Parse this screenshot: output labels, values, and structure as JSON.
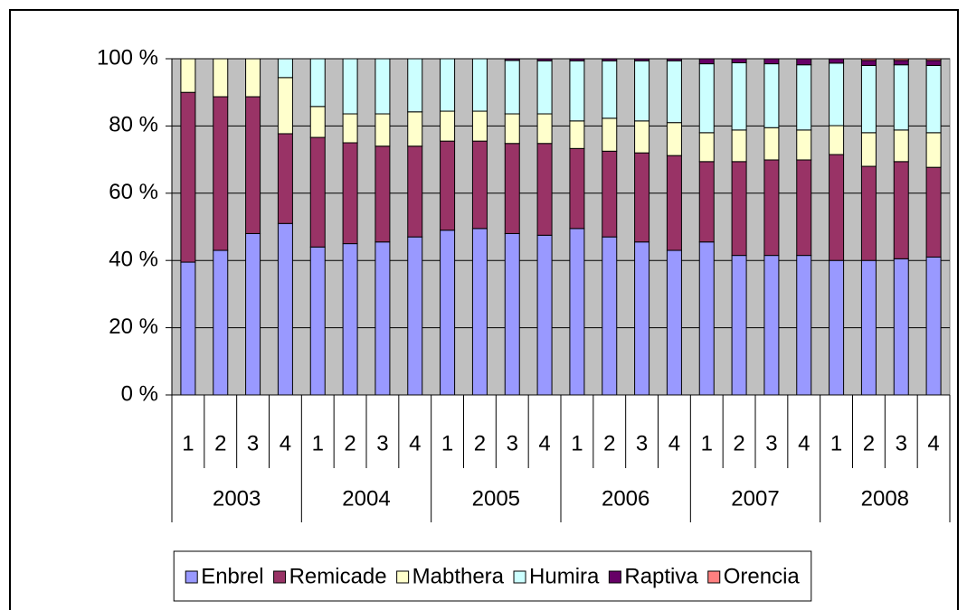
{
  "chart_data": {
    "type": "stacked_bar",
    "categories": [
      "1",
      "2",
      "3",
      "4",
      "1",
      "2",
      "3",
      "4",
      "1",
      "2",
      "3",
      "4",
      "1",
      "2",
      "3",
      "4",
      "1",
      "2",
      "3",
      "4",
      "1",
      "2",
      "3",
      "4"
    ],
    "groups": [
      "2003",
      "2004",
      "2005",
      "2006",
      "2007",
      "2008"
    ],
    "series": [
      {
        "name": "Enbrel",
        "color": "#9999ff",
        "values": [
          39.5,
          43,
          48,
          51,
          44,
          45,
          45.5,
          47,
          49,
          49.5,
          48,
          47.5,
          49.5,
          47,
          45.5,
          43,
          45.5,
          41.5,
          41.5,
          41.5,
          40,
          40,
          40.5,
          41
        ]
      },
      {
        "name": "Remicade",
        "color": "#993366",
        "values": [
          50.5,
          45.7,
          40.7,
          26.7,
          32.6,
          30,
          28.5,
          27,
          26.5,
          26,
          26.8,
          27.3,
          23.8,
          25.5,
          26.5,
          28.2,
          23.9,
          27.9,
          28.4,
          28.4,
          31.5,
          28,
          28.9,
          26.7
        ]
      },
      {
        "name": "Mabthera",
        "color": "#ffffcc",
        "values": [
          10,
          11.3,
          11.3,
          16.7,
          9.2,
          8.6,
          9.6,
          10.2,
          8.9,
          8.9,
          8.8,
          8.8,
          8.2,
          9.8,
          9.5,
          9.8,
          8.6,
          9.4,
          9.6,
          8.9,
          8.6,
          10,
          9.4,
          10.3
        ]
      },
      {
        "name": "Humira",
        "color": "#ccffff",
        "values": [
          0,
          0,
          0,
          5.6,
          14.2,
          16.4,
          16.4,
          15.8,
          15.6,
          15.6,
          15.9,
          15.8,
          17.9,
          17.1,
          17.9,
          18.4,
          20.5,
          20,
          19,
          19.4,
          18.6,
          20,
          19.4,
          20
        ]
      },
      {
        "name": "Raptiva",
        "color": "#660066",
        "values": [
          0,
          0,
          0,
          0,
          0,
          0,
          0,
          0,
          0,
          0,
          0.5,
          0.6,
          0.6,
          0.6,
          0.6,
          0.6,
          1.5,
          1.2,
          1.5,
          1.8,
          1.3,
          1.5,
          1.3,
          1.5
        ]
      },
      {
        "name": "Orencia",
        "color": "#ff8080",
        "values": [
          0,
          0,
          0,
          0,
          0,
          0,
          0,
          0,
          0,
          0,
          0,
          0,
          0,
          0,
          0,
          0,
          0,
          0,
          0,
          0,
          0,
          0.5,
          0.5,
          0.5
        ]
      }
    ],
    "ylim": [
      0,
      100
    ],
    "yticks": [
      {
        "value": 0,
        "label": "0 %"
      },
      {
        "value": 20,
        "label": "20 %"
      },
      {
        "value": 40,
        "label": "40 %"
      },
      {
        "value": 60,
        "label": "60 %"
      },
      {
        "value": 80,
        "label": "80 %"
      },
      {
        "value": 100,
        "label": "100 %"
      }
    ],
    "grid": true,
    "legend": "bottom"
  }
}
